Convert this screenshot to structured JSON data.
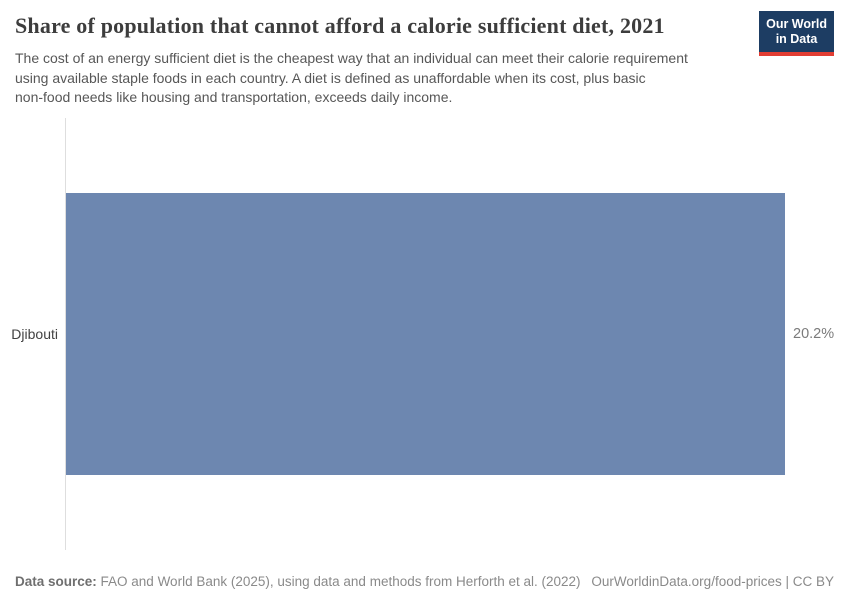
{
  "header": {
    "title": "Share of population that cannot afford a calorie sufficient diet, 2021",
    "subtitle_lines": [
      "The cost of an energy sufficient diet is the cheapest way that an individual can meet their calorie requirement",
      "using available staple foods in each country. A diet is defined as unaffordable when its cost, plus basic",
      "non-food needs like housing and transportation, exceeds daily income."
    ],
    "logo": {
      "line1": "Our World",
      "line2": "in Data",
      "bg_color": "#1d3d63",
      "accent_color": "#e23d33"
    }
  },
  "chart_data": {
    "type": "bar",
    "orientation": "horizontal",
    "title": "Share of population that cannot afford a calorie sufficient diet, 2021",
    "year": "2021",
    "categories": [
      "Djibouti"
    ],
    "values": [
      20.2
    ],
    "value_labels": [
      "20.2%"
    ],
    "unit": "%",
    "xlim": [
      0,
      20.2
    ],
    "bar_color": "#6d87b0",
    "axis_line_color": "#dedede",
    "grid": false,
    "legend": false
  },
  "footer": {
    "data_source_label": "Data source:",
    "data_source_text": " FAO and World Bank (2025), using data and methods from Herforth et al. (2022)",
    "rights": "OurWorldinData.org/food-prices | CC BY"
  }
}
